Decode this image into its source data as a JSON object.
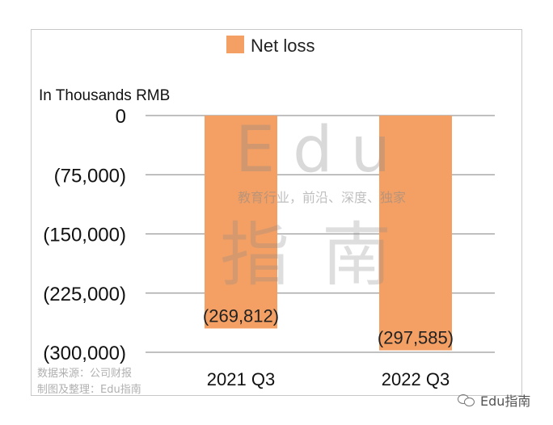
{
  "chart_data": {
    "type": "bar",
    "ylabel": "In Thousands RMB",
    "categories": [
      "2021 Q3",
      "2022 Q3"
    ],
    "series": [
      {
        "name": "Net loss",
        "values": [
          -269812,
          -297585
        ],
        "color": "#f4a064"
      }
    ],
    "data_labels": [
      "(269,812)",
      "(297,585)"
    ],
    "y_ticks": [
      0,
      -75000,
      -150000,
      -225000,
      -300000
    ],
    "y_tick_labels": [
      "0",
      "(75,000)",
      "(150,000)",
      "(225,000)",
      "(300,000)"
    ],
    "ylim": [
      -300000,
      0
    ],
    "grid": true,
    "legend_position": "top"
  },
  "watermark": {
    "latin": "Edu",
    "tagline": "教育行业，前沿、深度、独家",
    "chinese": "指南"
  },
  "source_note": {
    "line1": "数据来源：公司财报",
    "line2": "制图及整理：Edu指南"
  },
  "brand": {
    "label": "Edu指南",
    "icon": "wechat-icon"
  }
}
